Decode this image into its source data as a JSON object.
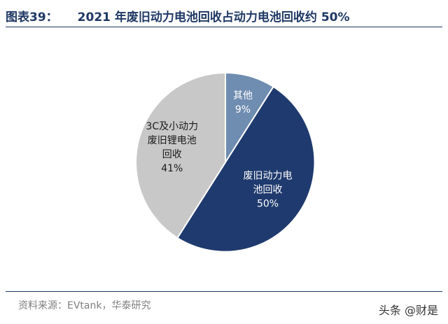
{
  "figure": {
    "label": "图表39：",
    "title": "2021 年废旧动力电池回收占动力电池回收约 50%"
  },
  "chart_data": {
    "type": "pie",
    "title": "2021 年废旧动力电池回收占动力电池回收约 50%",
    "slices": [
      {
        "label_lines": [
          "废旧动力电",
          "池回收"
        ],
        "value": 50,
        "value_label": "50%",
        "color": "#1f3a6e",
        "text_color": "#ffffff"
      },
      {
        "label_lines": [
          "3C及小动力",
          "废旧锂电池",
          "回收"
        ],
        "value": 41,
        "value_label": "41%",
        "color": "#c8c8c8",
        "text_color": "#1a1a1a"
      },
      {
        "label_lines": [
          "其他"
        ],
        "value": 9,
        "value_label": "9%",
        "color": "#6f8cb1",
        "text_color": "#ffffff"
      }
    ]
  },
  "footer": {
    "source": "资料来源：EVtank，华泰研究",
    "watermark": "头条 @财是"
  }
}
